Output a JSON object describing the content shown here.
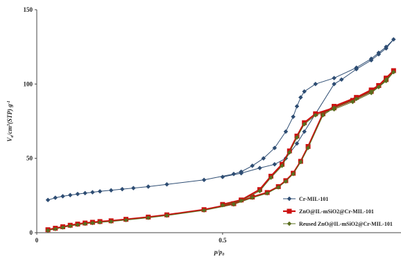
{
  "chart_data": {
    "type": "line",
    "xlabel": "p/p₀",
    "ylabel": "Va/cm³(STP) g⁻¹",
    "xlim": [
      0,
      0.98
    ],
    "ylim": [
      0,
      150
    ],
    "x_ticks": [
      "0",
      "0.5"
    ],
    "y_ticks": [
      "0",
      "50",
      "100",
      "150"
    ],
    "grid": false,
    "legend_position": "bottom-right",
    "series": [
      {
        "name": "Cr-MIL-101",
        "color": "#2e4d73",
        "marker": "diamond",
        "points": [
          [
            0.03,
            22
          ],
          [
            0.05,
            23.5
          ],
          [
            0.07,
            24.5
          ],
          [
            0.09,
            25.3
          ],
          [
            0.11,
            26
          ],
          [
            0.13,
            26.6
          ],
          [
            0.15,
            27.2
          ],
          [
            0.17,
            27.8
          ],
          [
            0.2,
            28.5
          ],
          [
            0.23,
            29.3
          ],
          [
            0.26,
            30
          ],
          [
            0.3,
            31
          ],
          [
            0.35,
            32.5
          ],
          [
            0.45,
            35.5
          ],
          [
            0.53,
            39.5
          ],
          [
            0.55,
            41
          ],
          [
            0.58,
            45
          ],
          [
            0.61,
            50
          ],
          [
            0.64,
            57
          ],
          [
            0.67,
            68
          ],
          [
            0.69,
            78
          ],
          [
            0.7,
            85
          ],
          [
            0.71,
            91
          ],
          [
            0.72,
            95
          ],
          [
            0.75,
            100
          ],
          [
            0.8,
            104
          ],
          [
            0.86,
            111
          ],
          [
            0.9,
            117
          ],
          [
            0.92,
            121
          ],
          [
            0.94,
            125
          ],
          [
            0.96,
            130
          ],
          [
            0.94,
            124
          ],
          [
            0.92,
            120
          ],
          [
            0.9,
            116
          ],
          [
            0.86,
            110
          ],
          [
            0.82,
            103
          ],
          [
            0.8,
            100
          ],
          [
            0.75,
            80
          ],
          [
            0.72,
            68
          ],
          [
            0.7,
            60
          ],
          [
            0.67,
            50
          ],
          [
            0.64,
            46
          ],
          [
            0.6,
            43.5
          ],
          [
            0.55,
            40
          ],
          [
            0.5,
            37.5
          ]
        ]
      },
      {
        "name": "ZnO@IL-mSiO2@Cr-MIL-101",
        "color": "#cc1111",
        "marker": "square",
        "points": [
          [
            0.03,
            2
          ],
          [
            0.05,
            3
          ],
          [
            0.07,
            4
          ],
          [
            0.09,
            5
          ],
          [
            0.11,
            5.8
          ],
          [
            0.13,
            6.5
          ],
          [
            0.15,
            7
          ],
          [
            0.17,
            7.5
          ],
          [
            0.2,
            8
          ],
          [
            0.24,
            9
          ],
          [
            0.3,
            10.5
          ],
          [
            0.35,
            12
          ],
          [
            0.45,
            15.5
          ],
          [
            0.53,
            19.5
          ],
          [
            0.58,
            24
          ],
          [
            0.62,
            27
          ],
          [
            0.65,
            31
          ],
          [
            0.67,
            35
          ],
          [
            0.69,
            40
          ],
          [
            0.71,
            48
          ],
          [
            0.73,
            58
          ],
          [
            0.77,
            80
          ],
          [
            0.8,
            85
          ],
          [
            0.86,
            91
          ],
          [
            0.9,
            96
          ],
          [
            0.92,
            99
          ],
          [
            0.94,
            103
          ],
          [
            0.96,
            109
          ],
          [
            0.94,
            104
          ],
          [
            0.92,
            99
          ],
          [
            0.9,
            95
          ],
          [
            0.85,
            89
          ],
          [
            0.8,
            84
          ],
          [
            0.75,
            80
          ],
          [
            0.72,
            74
          ],
          [
            0.7,
            65
          ],
          [
            0.68,
            55
          ],
          [
            0.66,
            46
          ],
          [
            0.63,
            38
          ],
          [
            0.6,
            29
          ],
          [
            0.55,
            22
          ],
          [
            0.5,
            19
          ]
        ]
      },
      {
        "name": "Reused ZnO@IL-mSiO2@Cr-MIL-101",
        "color": "#5a6e1e",
        "marker": "diamond",
        "points": [
          [
            0.03,
            1.5
          ],
          [
            0.05,
            2.5
          ],
          [
            0.07,
            3.5
          ],
          [
            0.09,
            4.5
          ],
          [
            0.11,
            5.3
          ],
          [
            0.13,
            6
          ],
          [
            0.15,
            6.5
          ],
          [
            0.17,
            7
          ],
          [
            0.2,
            7.5
          ],
          [
            0.24,
            8.5
          ],
          [
            0.3,
            10
          ],
          [
            0.35,
            11.5
          ],
          [
            0.45,
            15
          ],
          [
            0.53,
            19
          ],
          [
            0.58,
            23.5
          ],
          [
            0.62,
            26.5
          ],
          [
            0.65,
            30.5
          ],
          [
            0.67,
            34.5
          ],
          [
            0.69,
            39.5
          ],
          [
            0.71,
            47.5
          ],
          [
            0.73,
            57
          ],
          [
            0.77,
            79
          ],
          [
            0.8,
            84
          ],
          [
            0.86,
            90
          ],
          [
            0.9,
            95
          ],
          [
            0.92,
            98
          ],
          [
            0.94,
            102
          ],
          [
            0.96,
            108
          ],
          [
            0.94,
            103
          ],
          [
            0.92,
            98
          ],
          [
            0.9,
            94
          ],
          [
            0.85,
            88
          ],
          [
            0.8,
            83
          ],
          [
            0.75,
            79
          ],
          [
            0.72,
            73
          ],
          [
            0.7,
            64
          ],
          [
            0.68,
            54
          ],
          [
            0.66,
            45
          ],
          [
            0.63,
            37
          ],
          [
            0.6,
            28
          ],
          [
            0.55,
            21.5
          ],
          [
            0.5,
            18.5
          ]
        ]
      }
    ]
  }
}
